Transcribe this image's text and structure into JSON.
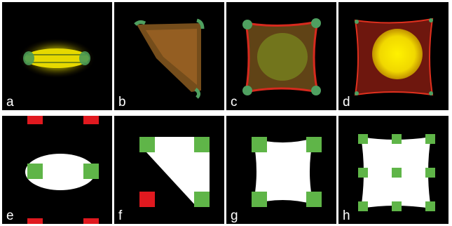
{
  "panels": [
    {
      "label": "a"
    },
    {
      "label": "b"
    },
    {
      "label": "c"
    },
    {
      "label": "d"
    },
    {
      "label": "e"
    },
    {
      "label": "f"
    },
    {
      "label": "g"
    },
    {
      "label": "h"
    }
  ],
  "colors": {
    "background": "#000000",
    "cell_fill": "#ffffff",
    "adhesion_green": "#5fb548",
    "adhesion_red": "#e0191f",
    "fluor_yellow": "#f5e400",
    "fluor_red": "#d62a1e"
  }
}
